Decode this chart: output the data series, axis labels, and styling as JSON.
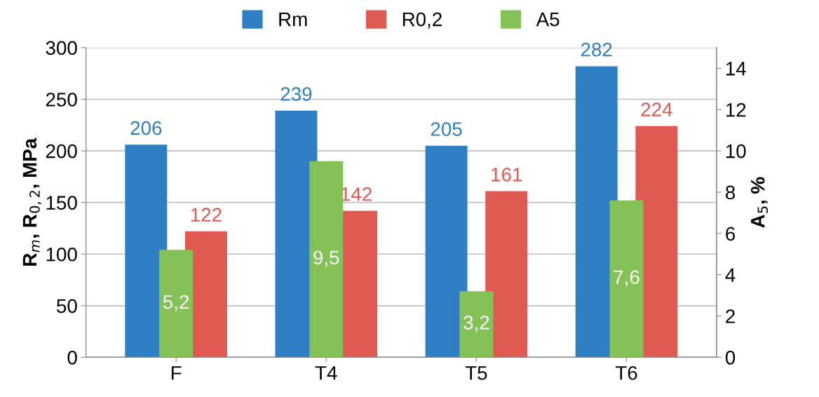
{
  "chart_data": {
    "type": "bar",
    "categories": [
      "F",
      "T4",
      "T5",
      "T6"
    ],
    "series": [
      {
        "name": "Rm",
        "color": "#2e7fc4",
        "values": [
          206,
          239,
          205,
          282
        ],
        "value_labels": [
          "206",
          "239",
          "205",
          "282"
        ]
      },
      {
        "name": "R0,2",
        "color": "#e05a52",
        "values": [
          122,
          142,
          161,
          224
        ],
        "value_labels": [
          "122",
          "142",
          "161",
          "224"
        ]
      },
      {
        "name": "A5",
        "color": "#84c157",
        "axis": "y2",
        "values": [
          5.2,
          9.5,
          3.2,
          7.6
        ],
        "value_labels": [
          "5,2",
          "9,5",
          "3,2",
          "7,6"
        ]
      }
    ],
    "ylabel": "R$_{m}$, R$_{0,2}$, MPa",
    "y2label": "A$_{5}$, %",
    "ylim": [
      0,
      300
    ],
    "yticks": [
      0,
      50,
      100,
      150,
      200,
      250,
      300
    ],
    "y2lim": [
      0,
      15
    ],
    "y2ticks": [
      0,
      2,
      4,
      6,
      8,
      10,
      12,
      14
    ],
    "grid": "y",
    "legend": "top"
  }
}
